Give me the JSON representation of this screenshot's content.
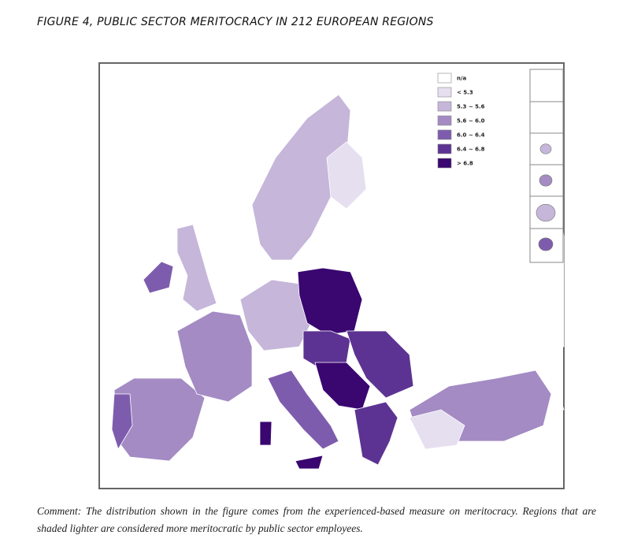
{
  "title": "FIGURE 4, PUBLIC SECTOR MERITOCRACY IN 212 EUROPEAN REGIONS",
  "legend": [
    {
      "label": "n/a",
      "color": "#ffffff"
    },
    {
      "label": "< 5.3",
      "color": "#e6dff0"
    },
    {
      "label": "5.3 ~ 5.6",
      "color": "#c5b6da"
    },
    {
      "label": "5.6 ~ 6.0",
      "color": "#a48bc4"
    },
    {
      "label": "6.0 ~ 6.4",
      "color": "#7e5cad"
    },
    {
      "label": "6.4 ~ 6.8",
      "color": "#5c3392"
    },
    {
      "label": "> 6.8",
      "color": "#3a0670"
    }
  ],
  "comment": {
    "label": "Comment:",
    "text": "The distribution shown in the figure comes from the experienced-based measure on meritocracy. Regions that are shaded lighter are considered more meritocratic by public sector employees."
  }
}
